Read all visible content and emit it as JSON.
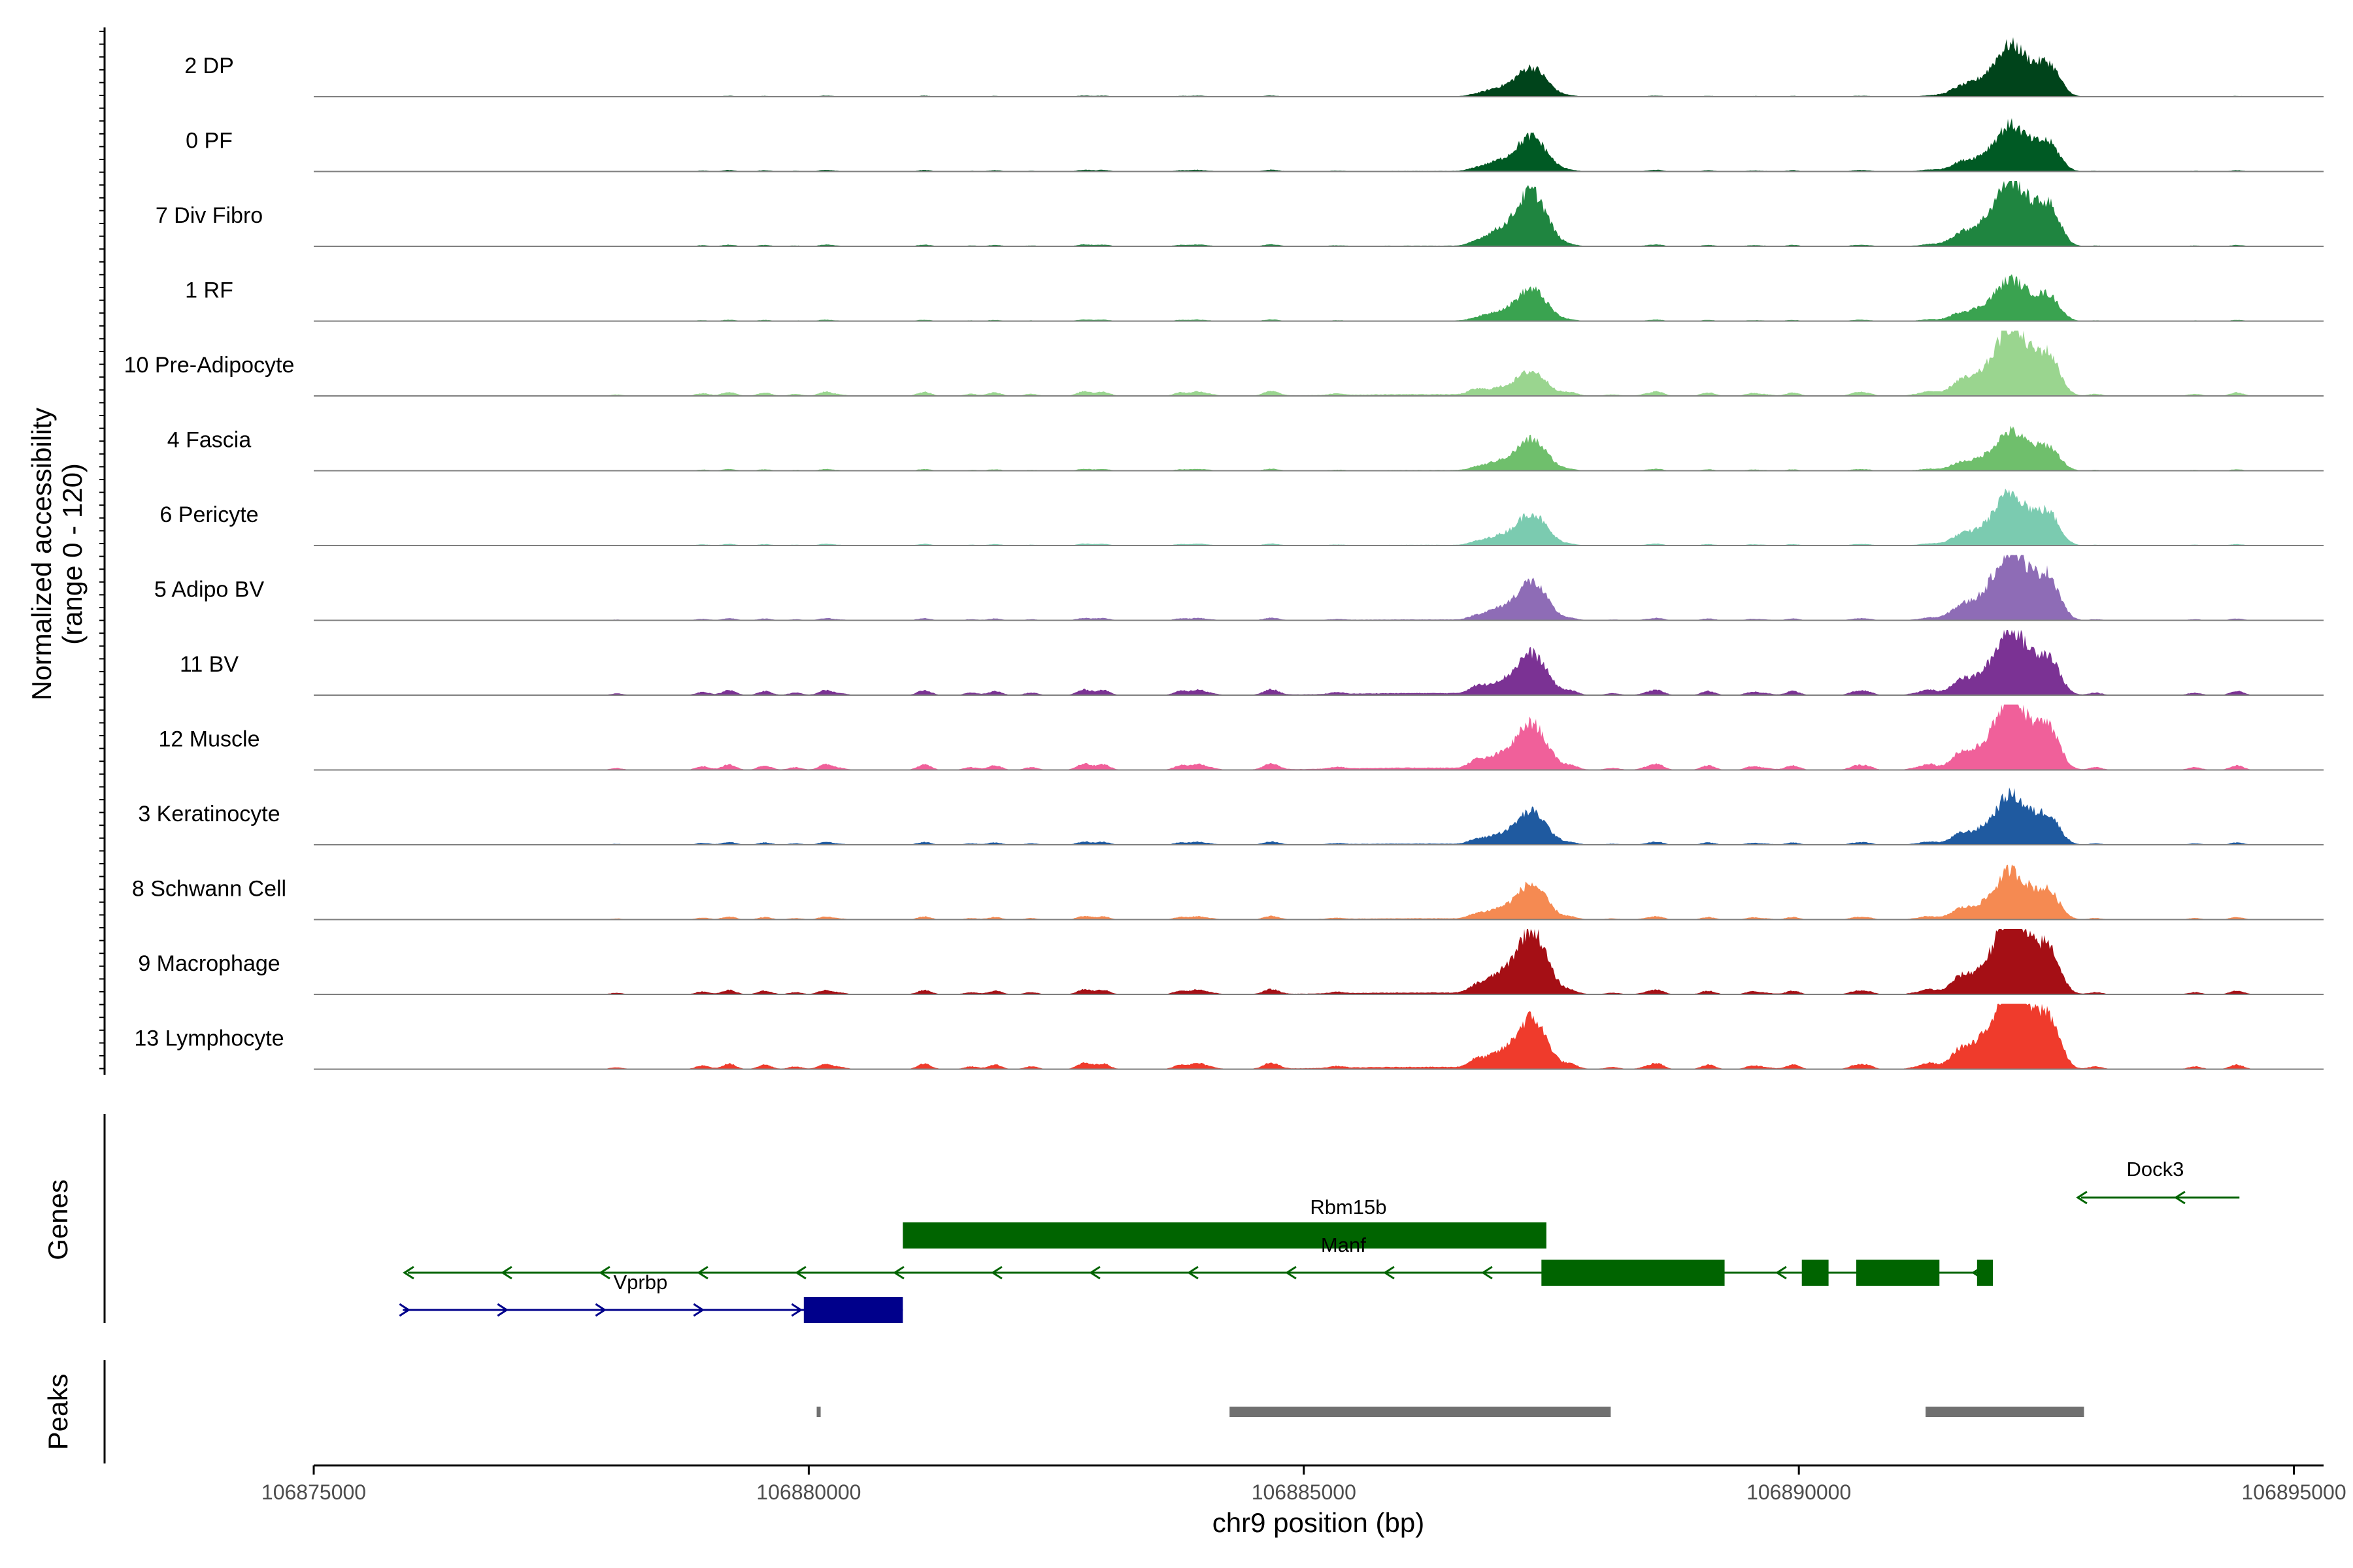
{
  "chart_data": {
    "type": "area",
    "subtype": "genome-browser-coverage",
    "ylabel_line1": "Normalized accessibility",
    "ylabel_line2": "(range 0 - 120)",
    "yrange": [
      0,
      120
    ],
    "xlabel": "chr9 position (bp)",
    "xlim": [
      106875000,
      106895300
    ],
    "xticks": [
      106875000,
      106880000,
      106885000,
      106890000,
      106895000
    ],
    "xtick_labels": [
      "106875000",
      "106880000",
      "106885000",
      "106890000",
      "106895000"
    ],
    "peak_summits_bp": [
      106887300,
      106892150
    ],
    "tracks": [
      {
        "name": "2 DP",
        "color": "#00441b",
        "peak1": 32,
        "peak2": 55,
        "noise": 0.18,
        "scale": 1.0
      },
      {
        "name": "0 PF",
        "color": "#005a24",
        "peak1": 38,
        "peak2": 48,
        "noise": 0.28,
        "scale": 1.0
      },
      {
        "name": "7 Div Fibro",
        "color": "#1f8540",
        "peak1": 60,
        "peak2": 70,
        "noise": 0.3,
        "scale": 1.0
      },
      {
        "name": "1 RF",
        "color": "#3aa350",
        "peak1": 35,
        "peak2": 43,
        "noise": 0.25,
        "scale": 1.0
      },
      {
        "name": "10 Pre-Adipocyte",
        "color": "#9ad58f",
        "peak1": 26,
        "peak2": 70,
        "noise": 0.75,
        "scale": 1.0
      },
      {
        "name": "4 Fascia",
        "color": "#6fbf6c",
        "peak1": 34,
        "peak2": 40,
        "noise": 0.3,
        "scale": 1.0
      },
      {
        "name": "6 Pericyte",
        "color": "#7bcbb0",
        "peak1": 35,
        "peak2": 55,
        "noise": 0.3,
        "scale": 1.0
      },
      {
        "name": "5 Adipo BV",
        "color": "#8e6cb6",
        "peak1": 42,
        "peak2": 75,
        "noise": 0.4,
        "scale": 1.0
      },
      {
        "name": "11 BV",
        "color": "#7b3294",
        "peak1": 45,
        "peak2": 65,
        "noise": 0.9,
        "scale": 1.0
      },
      {
        "name": "12 Muscle",
        "color": "#f0609a",
        "peak1": 50,
        "peak2": 72,
        "noise": 1.0,
        "scale": 1.0
      },
      {
        "name": "3 Keratinocyte",
        "color": "#1f5aa0",
        "peak1": 36,
        "peak2": 50,
        "noise": 0.5,
        "scale": 1.0
      },
      {
        "name": "8 Schwann Cell",
        "color": "#f58a52",
        "peak1": 38,
        "peak2": 48,
        "noise": 0.55,
        "scale": 1.0
      },
      {
        "name": "9 Macrophage",
        "color": "#a50f15",
        "peak1": 70,
        "peak2": 80,
        "noise": 0.8,
        "scale": 1.0
      },
      {
        "name": "13 Lymphocyte",
        "color": "#ef3b2c",
        "peak1": 55,
        "peak2": 90,
        "noise": 1.0,
        "scale": 1.0
      }
    ],
    "genes_panel_label": "Genes",
    "genes": [
      {
        "name": "Rbm15b",
        "color": "#006400",
        "strand": "+",
        "row": 0,
        "start": 106880950,
        "end": 106887450,
        "exons": [
          [
            106880950,
            106887450
          ]
        ],
        "show_line": false
      },
      {
        "name": "Manf",
        "color": "#006400",
        "strand": "-",
        "row": 1,
        "start": 106875950,
        "end": 106891950,
        "exons": [
          [
            106887400,
            106889250
          ],
          [
            106890030,
            106890300
          ],
          [
            106890580,
            106891420
          ],
          [
            106891800,
            106891960
          ]
        ],
        "show_line": true
      },
      {
        "name": "Vprbp",
        "color": "#00008b",
        "strand": "+",
        "row": 2,
        "start": 106875900,
        "end": 106880950,
        "exons": [
          [
            106879950,
            106880950
          ]
        ],
        "show_line": true
      },
      {
        "name": "Dock3",
        "color": "#006400",
        "strand": "-",
        "row": -1,
        "start": 106892850,
        "end": 106894450,
        "exons": [],
        "show_line": true
      }
    ],
    "peaks_panel_label": "Peaks",
    "peaks": [
      [
        106880080,
        106880120
      ],
      [
        106884250,
        106888100
      ],
      [
        106891280,
        106892880
      ]
    ],
    "peak_color": "#707070"
  }
}
